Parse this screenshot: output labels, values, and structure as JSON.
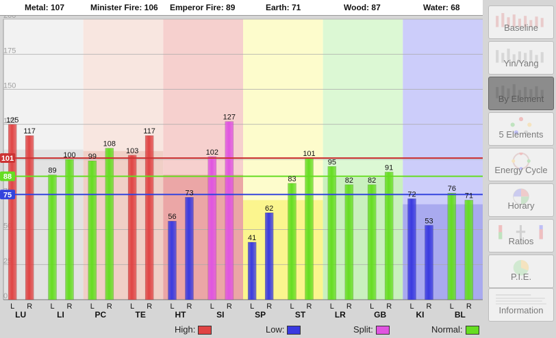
{
  "header": {
    "elements": [
      {
        "label": "Metal: 107"
      },
      {
        "label": "Minister Fire: 106"
      },
      {
        "label": "Emperor Fire: 89"
      },
      {
        "label": "Earth: 71"
      },
      {
        "label": "Wood: 87"
      },
      {
        "label": "Water: 68"
      }
    ]
  },
  "chart_data": {
    "type": "bar",
    "ylim": [
      0,
      200
    ],
    "yticks": [
      "0",
      "25",
      "50",
      "75",
      "100",
      "125",
      "150",
      "175",
      "200"
    ],
    "groups": [
      {
        "name": "LU",
        "left": 125,
        "right": 117,
        "side_labels": [
          "L",
          "R"
        ]
      },
      {
        "name": "LI",
        "left": 89,
        "right": 100,
        "side_labels": [
          "L",
          "R"
        ]
      },
      {
        "name": "PC",
        "left": 99,
        "right": 108,
        "side_labels": [
          "L",
          "R"
        ]
      },
      {
        "name": "TE",
        "left": 103,
        "right": 117,
        "side_labels": [
          "L",
          "R"
        ]
      },
      {
        "name": "HT",
        "left": 56,
        "right": 73,
        "side_labels": [
          "L",
          "R"
        ]
      },
      {
        "name": "SI",
        "left": 102,
        "right": 127,
        "side_labels": [
          "L",
          "R"
        ]
      },
      {
        "name": "SP",
        "left": 41,
        "right": 62,
        "side_labels": [
          "L",
          "R"
        ]
      },
      {
        "name": "ST",
        "left": 83,
        "right": 101,
        "side_labels": [
          "L",
          "R"
        ]
      },
      {
        "name": "LR",
        "left": 95,
        "right": 82,
        "side_labels": [
          "L",
          "R"
        ]
      },
      {
        "name": "GB",
        "left": 82,
        "right": 91,
        "side_labels": [
          "L",
          "R"
        ]
      },
      {
        "name": "KI",
        "left": 72,
        "right": 53,
        "side_labels": [
          "L",
          "R"
        ]
      },
      {
        "name": "BL",
        "left": 76,
        "right": 71,
        "side_labels": [
          "L",
          "R"
        ]
      }
    ],
    "reference_lines": [
      {
        "label": "101",
        "value": 101,
        "color": "#cc3333"
      },
      {
        "label": "88",
        "value": 88,
        "color": "#66dd22"
      },
      {
        "label": "75",
        "value": 75,
        "color": "#3344dd"
      }
    ],
    "element_bands": [
      {
        "name": "Metal",
        "value": 107,
        "color": "#f2f2f2",
        "avg_color": "#e2e2e2"
      },
      {
        "name": "Minister Fire",
        "value": 106,
        "color": "#f8e6e0",
        "avg_color": "#f0cfc6"
      },
      {
        "name": "Emperor Fire",
        "value": 89,
        "color": "#f6d0ce",
        "avg_color": "#eba6a6"
      },
      {
        "name": "Earth",
        "value": 71,
        "color": "#fdfccc",
        "avg_color": "#fbf58e"
      },
      {
        "name": "Wood",
        "value": 87,
        "color": "#dcf8d4",
        "avg_color": "#c9f0be"
      },
      {
        "name": "Water",
        "value": 68,
        "color": "#cccdfa",
        "avg_color": "#a9aaef"
      }
    ],
    "status_colors": {
      "High": "#e04444",
      "Low": "#3a3ae0",
      "Split": "#e055e0",
      "Normal": "#66dd22"
    },
    "bar_status": [
      [
        "High",
        "High"
      ],
      [
        "Normal",
        "Normal"
      ],
      [
        "Normal",
        "Normal"
      ],
      [
        "High",
        "High"
      ],
      [
        "Low",
        "Low"
      ],
      [
        "Split",
        "Split"
      ],
      [
        "Low",
        "Low"
      ],
      [
        "Normal",
        "Normal"
      ],
      [
        "Normal",
        "Normal"
      ],
      [
        "Normal",
        "Normal"
      ],
      [
        "Low",
        "Low"
      ],
      [
        "Normal",
        "Normal"
      ]
    ]
  },
  "legend": {
    "items": [
      {
        "label": "High:",
        "color": "#e04444"
      },
      {
        "label": "Low:",
        "color": "#3a3ae0"
      },
      {
        "label": "Split:",
        "color": "#e055e0"
      },
      {
        "label": "Normal:",
        "color": "#66dd22"
      }
    ]
  },
  "sidebar": {
    "buttons": [
      {
        "label": "Baseline",
        "active": false,
        "icon": "bars-thumbnail-icon"
      },
      {
        "label": "Yin/Yang",
        "active": false,
        "icon": "bars-thumbnail-icon"
      },
      {
        "label": "By Element",
        "active": true,
        "icon": "bars-thumbnail-icon"
      },
      {
        "label": "5 Elements",
        "active": false,
        "icon": "pentagram-thumbnail-icon"
      },
      {
        "label": "Energy Cycle",
        "active": false,
        "icon": "cycle-thumbnail-icon"
      },
      {
        "label": "Horary",
        "active": false,
        "icon": "clock-thumbnail-icon"
      },
      {
        "label": "Ratios",
        "active": false,
        "icon": "ratio-thumbnail-icon"
      },
      {
        "label": "P.I.E.",
        "active": false,
        "icon": "pie-thumbnail-icon"
      },
      {
        "label": "Information",
        "active": false,
        "icon": "document-thumbnail-icon"
      }
    ]
  }
}
